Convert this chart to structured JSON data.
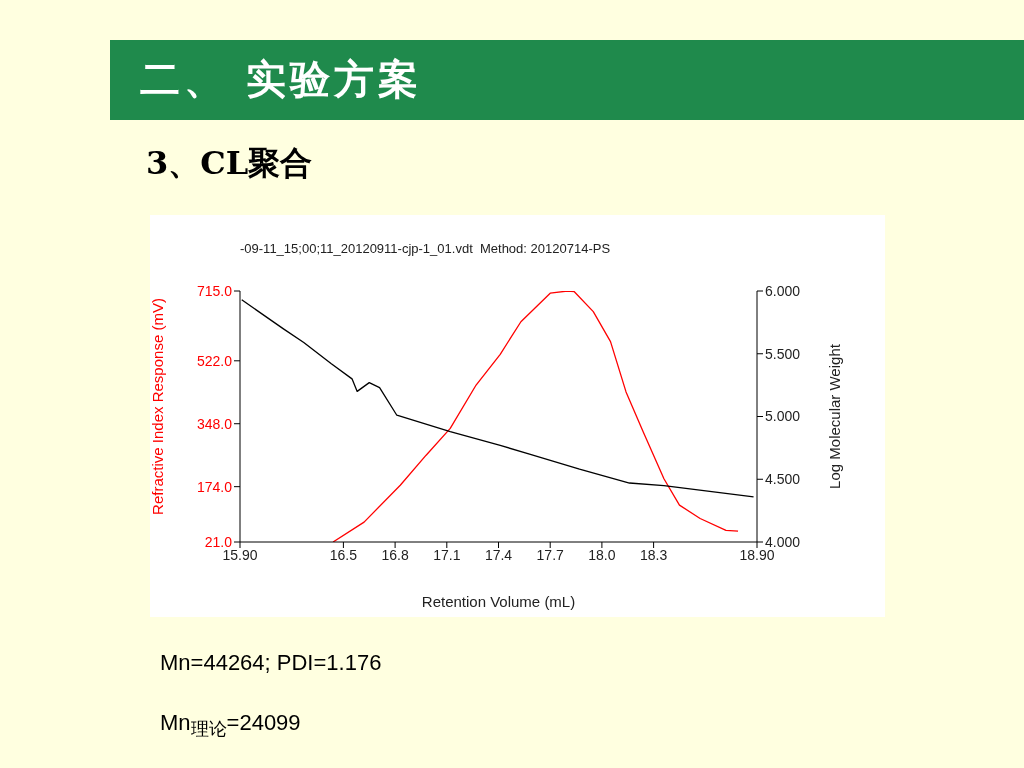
{
  "chart_data": {
    "type": "line",
    "title": "二、 实验方案",
    "subtitle": "3、CL聚合",
    "annotations": [
      "-09-11_15;00;11_20120911-cjp-1_01.vdt  Method: 20120714-PS",
      "Mn=44264; PDI=1.176",
      "Mn$_{理论}$=24099"
    ],
    "xlabel": "Retention Volume (mL)",
    "ylabel": "Refractive Index Response (mV)",
    "y2label": "Log Molecular Weight",
    "xlim": [
      15.9,
      18.9
    ],
    "xticks": [
      {
        "value": 15.9,
        "label": "15.90"
      },
      16.5,
      16.8,
      17.1,
      17.4,
      17.7,
      {
        "value": 18,
        "label": "18.0"
      },
      18.3,
      {
        "value": 18.9,
        "label": "18.90"
      }
    ],
    "ylim": [
      21,
      715
    ],
    "yticks": [
      {
        "value": 21,
        "label": "21.0"
      },
      {
        "value": 174,
        "label": "174.0"
      },
      {
        "value": 348,
        "label": "348.0"
      },
      {
        "value": 522,
        "label": "522.0"
      },
      {
        "value": 715,
        "label": "715.0"
      }
    ],
    "y2lim": [
      4,
      6
    ],
    "y2ticks": [
      {
        "value": 4,
        "label": "4.000"
      },
      {
        "value": 4.5,
        "label": "4.500"
      },
      {
        "value": 5,
        "label": "5.000"
      },
      {
        "value": 5.5,
        "label": "5.500"
      },
      {
        "value": 6,
        "label": "6.000"
      }
    ],
    "marker": "none",
    "line_style": "solid",
    "series": [
      {
        "color": "#ff0000",
        "x": [
          16.44,
          16.62,
          16.83,
          16.98,
          17.12,
          17.27,
          17.41,
          17.53,
          17.7,
          17.8,
          17.84,
          17.95,
          18.05,
          18.14,
          18.24,
          18.36,
          18.45,
          18.57,
          18.72,
          18.79
        ],
        "values": [
          21,
          76,
          178,
          261,
          335,
          455,
          540,
          630,
          709,
          715,
          713,
          658,
          575,
          436,
          325,
          196,
          123,
          86,
          53,
          51
        ]
      },
      {
        "color": "#000000",
        "axis": "y2",
        "x": [
          15.91,
          16.15,
          16.27,
          16.43,
          16.55,
          16.58,
          16.65,
          16.71,
          16.81,
          17.12,
          17.41,
          17.58,
          17.87,
          18.16,
          18.36,
          18.88
        ],
        "values": [
          5.93,
          5.7,
          5.59,
          5.42,
          5.3,
          5.2,
          5.27,
          5.23,
          5.01,
          4.88,
          4.77,
          4.7,
          4.58,
          4.47,
          4.45,
          4.36
        ]
      }
    ]
  }
}
